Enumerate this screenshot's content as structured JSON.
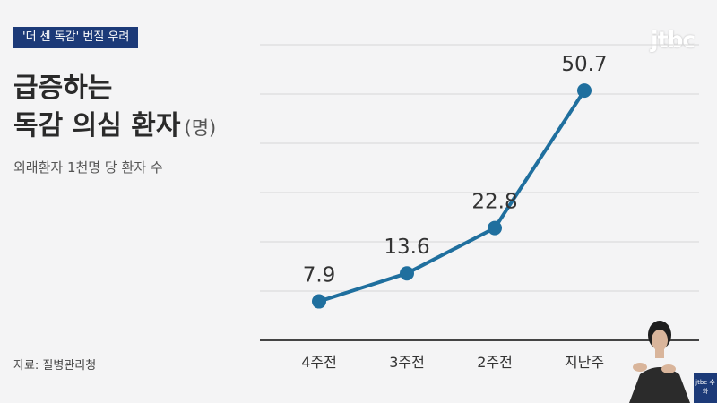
{
  "header": {
    "tag_label": "'더 센 독감' 번질 우려",
    "logo": "jtbc"
  },
  "title": {
    "line1": "급증하는",
    "line2": "독감 의심 환자",
    "unit": "(명)"
  },
  "subtitle": "외래환자 1천명 당 환자 수",
  "source": "자료: 질병관리청",
  "interpreter": {
    "badge_text": "jtbc 수화"
  },
  "colors": {
    "line": "#1f6f9e",
    "marker": "#1f6f9e",
    "grid": "#d6d6d6",
    "axis": "#444444",
    "tag_bg": "#1c3a78"
  },
  "chart_data": {
    "type": "line",
    "categories": [
      "4주전",
      "3주전",
      "2주전",
      "지난주"
    ],
    "values": [
      7.9,
      13.6,
      22.8,
      50.7
    ],
    "data_labels": [
      "7.9",
      "13.6",
      "22.8",
      "50.7"
    ],
    "ylim": [
      0,
      60
    ],
    "grid": true,
    "title": "",
    "xlabel": "",
    "ylabel": ""
  }
}
